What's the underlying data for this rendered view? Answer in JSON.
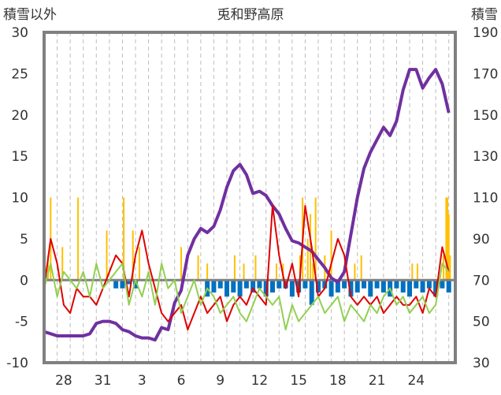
{
  "chart_data": {
    "type": "line",
    "title": "兎和野高原",
    "ylabel_left": "積雪以外",
    "ylabel_right": "積雪",
    "ylim_left": [
      -10,
      30
    ],
    "ylim_right": [
      30,
      190
    ],
    "yticks_left": [
      -10,
      -5,
      0,
      5,
      10,
      15,
      20,
      25,
      30
    ],
    "yticks_right": [
      30,
      50,
      70,
      90,
      110,
      130,
      150,
      170,
      190
    ],
    "xlim": [
      0,
      31.5
    ],
    "xticks": [
      {
        "x": 1.5,
        "label": "28"
      },
      {
        "x": 4.5,
        "label": "31"
      },
      {
        "x": 7.5,
        "label": "3"
      },
      {
        "x": 10.5,
        "label": "6"
      },
      {
        "x": 13.5,
        "label": "9"
      },
      {
        "x": 16.5,
        "label": "12"
      },
      {
        "x": 19.5,
        "label": "15"
      },
      {
        "x": 22.5,
        "label": "18"
      },
      {
        "x": 25.5,
        "label": "21"
      },
      {
        "x": 28.5,
        "label": "24"
      },
      {
        "x": 31.5,
        "label": ""
      }
    ],
    "grid": "vertical-dashed-daily",
    "colors": {
      "snow_depth": "#7030a0",
      "temperature": "#e00000",
      "dewpoint": "#92d050",
      "precipitation": "#ffc000",
      "snowfall": "#0070c0",
      "frame": "#808080"
    },
    "series": [
      {
        "key": "snow_depth",
        "axis": "right",
        "x": [
          0,
          0.5,
          1,
          1.5,
          2,
          2.5,
          3,
          3.5,
          4,
          4.5,
          5,
          5.5,
          6,
          6.5,
          7,
          7.5,
          8,
          8.5,
          9,
          9.5,
          10,
          10.5,
          11,
          11.5,
          12,
          12.5,
          13,
          13.5,
          14,
          14.5,
          15,
          15.5,
          16,
          16.5,
          17,
          17.5,
          18,
          18.5,
          19,
          19.5,
          20,
          20.5,
          21,
          21.5,
          22,
          22.5,
          23,
          23.5,
          24,
          24.5,
          25,
          25.5,
          26,
          26.5,
          27,
          27.5,
          28,
          28.5,
          29,
          29.5,
          30,
          30.5,
          31
        ],
        "values": [
          45,
          44,
          43,
          43,
          43,
          43,
          43,
          44,
          49,
          50,
          50,
          49,
          46,
          45,
          43,
          42,
          42,
          41,
          47,
          46,
          59,
          65,
          82,
          90,
          95,
          93,
          96,
          104,
          115,
          123,
          126,
          121,
          112,
          113,
          111,
          106,
          102,
          95,
          89,
          88,
          86,
          84,
          80,
          76,
          71,
          69,
          74,
          92,
          110,
          124,
          132,
          138,
          144,
          140,
          147,
          162,
          172,
          172,
          163,
          168,
          172,
          165,
          151
        ]
      },
      {
        "key": "temperature",
        "axis": "left",
        "x": [
          0,
          0.5,
          1,
          1.5,
          2,
          2.5,
          3,
          3.5,
          4,
          4.5,
          5,
          5.5,
          6,
          6.5,
          7,
          7.5,
          8,
          8.5,
          9,
          9.5,
          10,
          10.5,
          11,
          11.5,
          12,
          12.5,
          13,
          13.5,
          14,
          14.5,
          15,
          15.5,
          16,
          16.5,
          17,
          17.5,
          18,
          18.5,
          19,
          19.5,
          20,
          20.5,
          21,
          21.5,
          22,
          22.5,
          23,
          23.5,
          24,
          24.5,
          25,
          25.5,
          26,
          26.5,
          27,
          27.5,
          28,
          28.5,
          29,
          29.5,
          30,
          30.5,
          31
        ],
        "values": [
          -1,
          5,
          2,
          -3,
          -4,
          -1,
          -2,
          -2,
          -3,
          -1,
          1,
          3,
          2,
          -2,
          3,
          6,
          2,
          -1,
          -4,
          -5,
          -4,
          -3,
          -6,
          -4,
          -2,
          -4,
          -3,
          -2,
          -5,
          -3,
          -2,
          -3,
          -1,
          -2,
          -3,
          9,
          3,
          -1,
          2,
          -2,
          9,
          4,
          -2,
          -1,
          2,
          5,
          3,
          -2,
          -3,
          -2,
          -3,
          -2,
          -4,
          -3,
          -2,
          -3,
          -3,
          -2,
          -4,
          -1,
          -2,
          4,
          1
        ]
      },
      {
        "key": "dewpoint",
        "axis": "left",
        "x": [
          0,
          0.5,
          1,
          1.5,
          2,
          2.5,
          3,
          3.5,
          4,
          4.5,
          5,
          5.5,
          6,
          6.5,
          7,
          7.5,
          8,
          8.5,
          9,
          9.5,
          10,
          10.5,
          11,
          11.5,
          12,
          12.5,
          13,
          13.5,
          14,
          14.5,
          15,
          15.5,
          16,
          16.5,
          17,
          17.5,
          18,
          18.5,
          19,
          19.5,
          20,
          20.5,
          21,
          21.5,
          22,
          22.5,
          23,
          23.5,
          24,
          24.5,
          25,
          25.5,
          26,
          26.5,
          27,
          27.5,
          28,
          28.5,
          29,
          29.5,
          30,
          30.5,
          31
        ],
        "values": [
          -1,
          2,
          -2,
          1,
          0,
          -1,
          1,
          -2,
          2,
          -1,
          0,
          1,
          2,
          -3,
          0,
          -2,
          1,
          -3,
          2,
          -1,
          0,
          -4,
          -2,
          0,
          -3,
          -1,
          -2,
          -4,
          -3,
          -2,
          -4,
          -5,
          -3,
          -1,
          -2,
          -3,
          -2,
          -6,
          -3,
          -5,
          -4,
          -3,
          -2,
          -4,
          -3,
          -2,
          -5,
          -3,
          -4,
          -5,
          -3,
          -4,
          -2,
          -1,
          -3,
          -2,
          -4,
          -3,
          -2,
          -4,
          -3,
          2,
          1
        ]
      }
    ],
    "bars": [
      {
        "key": "precipitation",
        "axis": "left",
        "x": [
          0.3,
          0.5,
          1.4,
          2.6,
          4.8,
          6.1,
          6.8,
          7.3,
          10.5,
          11.8,
          12.5,
          14.6,
          15.3,
          16.2,
          17.8,
          18.3,
          19.6,
          19.8,
          20.2,
          20.4,
          20.6,
          20.8,
          21.5,
          22.0,
          23.8,
          24.3,
          28.2,
          28.6,
          30.6,
          30.8,
          30.9,
          31.0,
          31.1
        ],
        "values": [
          3,
          10,
          4,
          10,
          6,
          10,
          6,
          4,
          4,
          3,
          2,
          3,
          2,
          3,
          2,
          2,
          3,
          10,
          5,
          8,
          2,
          10,
          3,
          6,
          2,
          3,
          2,
          2,
          3,
          10,
          10,
          8,
          3
        ]
      },
      {
        "key": "snowfall",
        "axis": "left",
        "x": [
          5.5,
          6.0,
          6.5,
          7.0,
          12.5,
          13.0,
          13.5,
          14.0,
          14.5,
          15.0,
          15.5,
          16.0,
          16.5,
          17.0,
          17.5,
          18.0,
          18.5,
          19.0,
          19.5,
          20.0,
          20.5,
          21.0,
          21.5,
          22.0,
          22.5,
          23.0,
          23.5,
          24.0,
          24.5,
          25.0,
          25.5,
          26.0,
          26.5,
          27.0,
          27.5,
          28.0,
          28.5,
          29.0,
          29.5,
          30.0,
          30.5,
          31.0
        ],
        "values": [
          -1,
          -1,
          -0.5,
          -1,
          -2,
          -1.5,
          -1,
          -2,
          -1.5,
          -2,
          -1,
          -1.5,
          -1,
          -2,
          -1.5,
          -1,
          -1,
          -2,
          -1.5,
          -1,
          -3,
          -1.5,
          -1,
          -2,
          -1.5,
          -1,
          -2,
          -1.5,
          -1,
          -2,
          -1,
          -1.5,
          -2,
          -1,
          -1.5,
          -2,
          -1,
          -1.5,
          -1,
          -2,
          -1,
          -1.5
        ]
      }
    ]
  }
}
